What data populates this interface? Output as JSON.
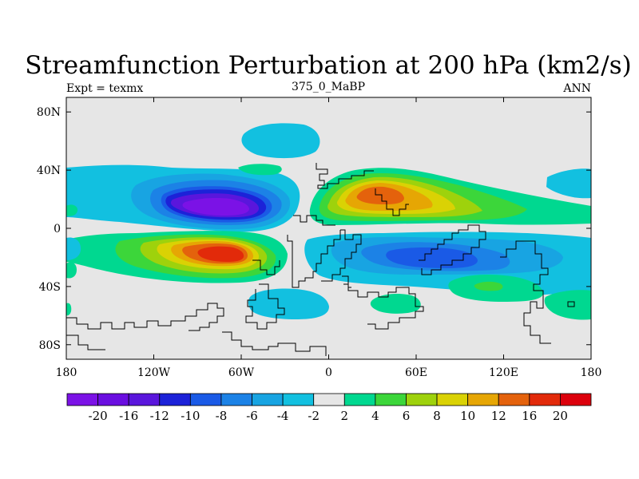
{
  "chart_data": {
    "type": "contour-map",
    "title": "Streamfunction Perturbation at 200 hPa (km2/s)",
    "left_label": "Expt = texmx",
    "center_label": "375_0_MaBP",
    "right_label": "ANN",
    "x_ticks": [
      {
        "value": -180,
        "label": "180"
      },
      {
        "value": -120,
        "label": "120W"
      },
      {
        "value": -60,
        "label": "60W"
      },
      {
        "value": 0,
        "label": "0"
      },
      {
        "value": 60,
        "label": "60E"
      },
      {
        "value": 120,
        "label": "120E"
      },
      {
        "value": 180,
        "label": "180"
      }
    ],
    "y_ticks": [
      {
        "value": 80,
        "label": "80N"
      },
      {
        "value": 40,
        "label": "40N"
      },
      {
        "value": 0,
        "label": "0"
      },
      {
        "value": -40,
        "label": "40S"
      },
      {
        "value": -80,
        "label": "80S"
      }
    ],
    "xlim": [
      -180,
      180
    ],
    "ylim": [
      -90,
      90
    ],
    "contour_levels": [
      "-20",
      "-16",
      "-12",
      "-10",
      "-8",
      "-6",
      "-4",
      "-2",
      "2",
      "4",
      "6",
      "8",
      "10",
      "12",
      "16",
      "20"
    ],
    "colors": [
      "#7b12e6",
      "#6a0ee0",
      "#5a16dc",
      "#1c22d8",
      "#1a5ae6",
      "#1c82e6",
      "#18a4e2",
      "#12c0e0",
      "#e6e6e6",
      "#00d890",
      "#3cd63a",
      "#9ed20c",
      "#dad204",
      "#e6a604",
      "#e4620c",
      "#e22a0a",
      "#dc000c"
    ],
    "features": [
      {
        "label": "-20",
        "lon": -65,
        "lat": 15,
        "extent_lon": [
          -120,
          -30
        ],
        "extent_lat": [
          0,
          30
        ]
      },
      {
        "label": "16",
        "lon": -57,
        "lat": -17,
        "extent_lon": [
          -120,
          -30
        ],
        "extent_lat": [
          -35,
          0
        ]
      },
      {
        "label": "12",
        "lon": 35,
        "lat": 22,
        "extent_lon": [
          -10,
          180
        ],
        "extent_lat": [
          0,
          40
        ]
      },
      {
        "label": "-8",
        "lon": 60,
        "lat": -22,
        "extent_lon": [
          -15,
          180
        ],
        "extent_lat": [
          -50,
          -5
        ]
      },
      {
        "label": "-4",
        "lon": -120,
        "lat": 20,
        "extent_lon": [
          -180,
          -30
        ],
        "extent_lat": [
          5,
          40
        ]
      },
      {
        "label": "4",
        "lon": 105,
        "lat": -40,
        "extent_lon": [
          90,
          120
        ],
        "extent_lat": [
          -44,
          -36
        ]
      }
    ]
  }
}
